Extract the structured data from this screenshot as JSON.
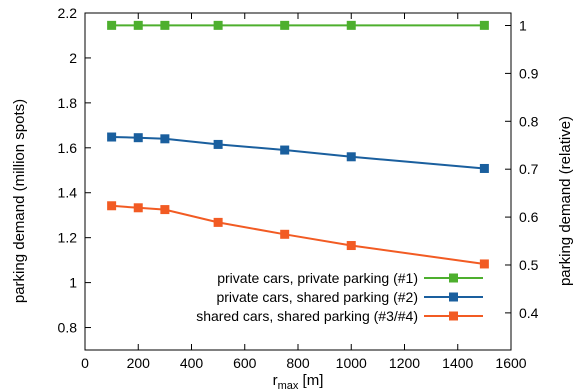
{
  "chart_data": {
    "type": "line",
    "title": "",
    "xlabel_main": "r",
    "xlabel_sub": "max",
    "xlabel_unit": " [m]",
    "ylabel_left": "parking demand (million spots)",
    "ylabel_right": "parking demand (relative)",
    "xlim": [
      0,
      1600
    ],
    "ylim_left": [
      0.7,
      2.2
    ],
    "ylim_right": [
      0.3225,
      1.0261
    ],
    "grid": false,
    "legend_position": "bottom-right",
    "x": [
      100,
      200,
      300,
      500,
      750,
      1000,
      1500
    ],
    "x_ticks": [
      "0",
      "200",
      "400",
      "600",
      "800",
      "1000",
      "1200",
      "1400",
      "1600"
    ],
    "y_left_ticks": [
      "0.8",
      "1",
      "1.2",
      "1.4",
      "1.6",
      "1.8",
      "2",
      "2.2"
    ],
    "y_right_ticks": [
      "0.4",
      "0.5",
      "0.6",
      "0.7",
      "0.8",
      "0.9",
      "1"
    ],
    "series": [
      {
        "name": "private cars, private parking (#1)",
        "color": "#4daf2e",
        "values": [
          2.145,
          2.145,
          2.145,
          2.145,
          2.145,
          2.145,
          2.145
        ]
      },
      {
        "name": "private cars, shared parking (#2)",
        "color": "#1a5f9e",
        "values": [
          1.648,
          1.645,
          1.64,
          1.615,
          1.59,
          1.56,
          1.508
        ]
      },
      {
        "name": "shared cars, shared parking (#3/#4)",
        "color": "#f25b23",
        "values": [
          1.342,
          1.333,
          1.325,
          1.268,
          1.215,
          1.165,
          1.083
        ]
      }
    ]
  }
}
